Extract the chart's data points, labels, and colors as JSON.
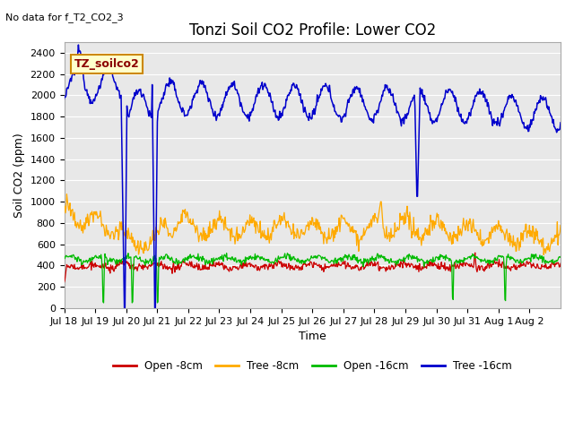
{
  "title": "Tonzi Soil CO2 Profile: Lower CO2",
  "no_data_label": "No data for f_T2_CO2_3",
  "legend_box_label": "TZ_soilco2",
  "ylabel": "Soil CO2 (ppm)",
  "xlabel": "Time",
  "ylim": [
    0,
    2500
  ],
  "yticks": [
    0,
    200,
    400,
    600,
    800,
    1000,
    1200,
    1400,
    1600,
    1800,
    2000,
    2200,
    2400
  ],
  "x_labels": [
    "Jul 18",
    "Jul 19",
    "Jul 20",
    "Jul 21",
    "Jul 22",
    "Jul 23",
    "Jul 24",
    "Jul 25",
    "Jul 26",
    "Jul 27",
    "Jul 28",
    "Jul 29",
    "Jul 30",
    "Jul 31",
    "Aug 1",
    "Aug 2"
  ],
  "colors": {
    "open_8cm": "#cc0000",
    "tree_8cm": "#ffaa00",
    "open_16cm": "#00bb00",
    "tree_16cm": "#0000cc"
  },
  "legend_labels": [
    "Open -8cm",
    "Tree -8cm",
    "Open -16cm",
    "Tree -16cm"
  ],
  "fig_bg_color": "#ffffff",
  "plot_bg_color": "#e8e8e8",
  "grid_color": "#ffffff",
  "title_fontsize": 12,
  "axis_fontsize": 9,
  "tick_fontsize": 8
}
